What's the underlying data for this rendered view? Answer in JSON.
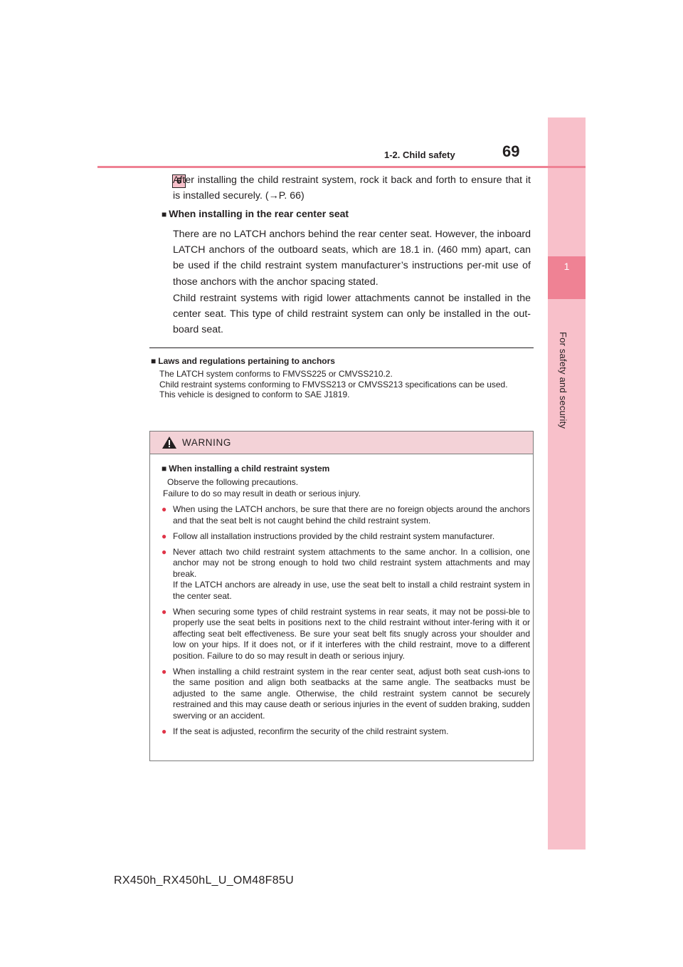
{
  "header": {
    "section": "1-2. Child safety",
    "page_number": "69"
  },
  "side_tab": {
    "chapter_number": "1",
    "chapter_title": "For safety and security"
  },
  "step": {
    "number": "6",
    "text": "After installing the child restraint system, rock it back and forth to ensure that it is installed securely. (→P. 66)"
  },
  "rear_center": {
    "heading": "When installing in the rear center seat",
    "para1": "There are no LATCH anchors behind the rear center seat. However, the inboard LATCH anchors of the outboard seats, which are 18.1 in. (460 mm) apart, can be used if the child restraint system manufacturer’s instructions per-mit use of those anchors with the anchor spacing stated.",
    "para2": "Child restraint systems with rigid lower attachments cannot be installed in the center seat. This type of child restraint system can only be installed in the out-board seat."
  },
  "laws": {
    "heading": "Laws and regulations pertaining to anchors",
    "line1": "The LATCH system conforms to FMVSS225 or CMVSS210.2.",
    "line2": "Child restraint systems conforming to FMVSS213 or CMVSS213 specifications can be used.",
    "line3": "This vehicle is designed to conform to SAE J1819."
  },
  "warning": {
    "title": "WARNING",
    "subheading": "When installing a child restraint system",
    "intro1": "Observe the following precautions.",
    "intro2": "Failure to do so may result in death or serious injury.",
    "bullets": [
      "When using the LATCH anchors, be sure that there are no foreign objects around the anchors and that the seat belt is not caught behind the child restraint system.",
      "Follow all installation instructions provided by the child restraint system manufacturer.",
      "Never attach two child restraint system attachments to the same anchor. In a collision, one anchor may not be strong enough to hold two child restraint system attachments and may break.",
      "When securing some types of child restraint systems in rear seats, it may not be possi-ble to properly use the seat belts in positions next to the child restraint without inter-fering with it or affecting seat belt effectiveness. Be sure your seat belt fits snugly across your shoulder and low on your hips. If it does not, or if it interferes with the child restraint, move to a different position. Failure to do so may result in death or serious injury.",
      "When installing a child restraint system in the rear center seat, adjust both seat cush-ions to the same position and align both seatbacks at the same angle. The seatbacks must be adjusted to the same angle. Otherwise, the child restraint system cannot be securely restrained and this may cause death or serious injuries in the event of sudden braking, sudden swerving or an accident.",
      "If the seat is adjusted, reconfirm the security of the child restraint system."
    ],
    "bullet3_extra": "If the LATCH anchors are already in use, use the seat belt to install a child restraint system in the center seat."
  },
  "footer": {
    "model_code": "RX450h_RX450hL_U_OM48F85U"
  },
  "colors": {
    "accent_pink": "#ef8294",
    "tab_pink": "#f8c0ca",
    "warning_header": "#f3d2d7",
    "bullet_red": "#e03448"
  }
}
